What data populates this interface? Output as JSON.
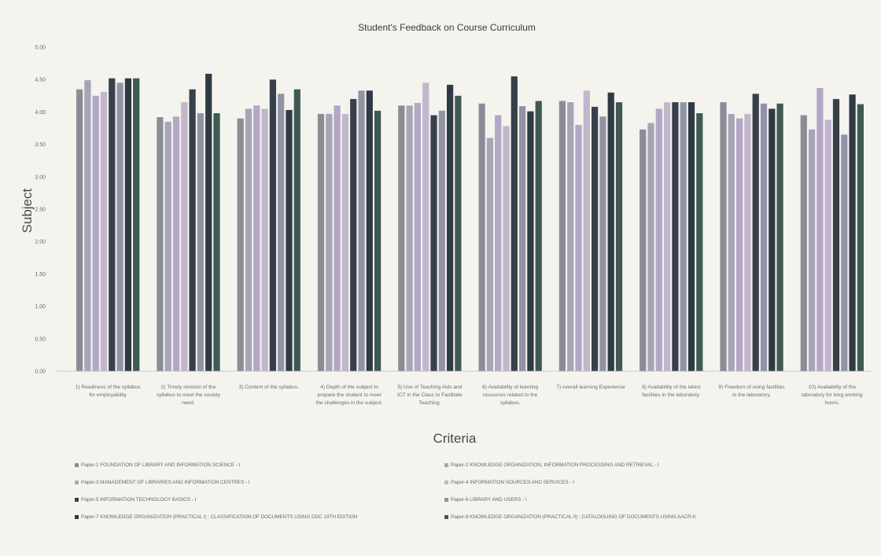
{
  "chart_data": {
    "type": "bar",
    "title": "Student's Feedback on Course Curriculum",
    "xlabel": "Criteria",
    "ylabel": "Subject",
    "ylim": [
      0,
      5
    ],
    "yticks": [
      "0.00",
      "0.50",
      "1.00",
      "1.50",
      "2.00",
      "2.50",
      "3.00",
      "3.50",
      "4.00",
      "4.50",
      "5.00"
    ],
    "grid": false,
    "legend_position": "bottom",
    "categories": [
      "1) Readiness of the syllabus for employability",
      "2) Timely revision of the syllabus to meet the society need.",
      "3) Content of the syllabus.",
      "4) Depth of the subject to prepare the student to meet the challenges in the subject.",
      "5) Use of Teaching Aids and ICT in the Class to Facilitate Teaching.",
      "6) Availability of learning resources related to the syllabus.",
      "7) overall learning Experience",
      "8) Availability of the latest facilities in the laboratory.",
      "9) Freedom of using facilities in the laboratory.",
      "10) Availability of the laboratory for long working hours."
    ],
    "series": [
      {
        "name": "Paper-1 FOUNDATION OF LIBRARY AND INFORMATION SCIENCE - I",
        "color": "#8c8c96",
        "values": [
          4.35,
          3.92,
          3.9,
          3.97,
          4.1,
          4.13,
          4.17,
          3.73,
          4.15,
          3.95
        ]
      },
      {
        "name": "Paper-2 KNOWLEDGE ORGANIZATION, INFORMATION PROCESSING AND RETRIEVAL - I",
        "color": "#a8a4b8",
        "values": [
          4.49,
          3.85,
          4.05,
          3.97,
          4.1,
          3.6,
          4.15,
          3.83,
          3.97,
          3.73
        ]
      },
      {
        "name": "Paper-3 MANAGEMENT OF LIBRARIES AND INFORMATION CENTRES - I",
        "color": "#b4a6c6",
        "values": [
          4.25,
          3.93,
          4.1,
          4.1,
          4.14,
          3.95,
          3.8,
          4.05,
          3.9,
          4.37
        ]
      },
      {
        "name": "Paper-4 INFORMATION SOURCES AND SERVICES - I",
        "color": "#c2b6cc",
        "values": [
          4.31,
          4.15,
          4.05,
          3.97,
          4.45,
          3.78,
          4.33,
          4.15,
          3.97,
          3.88
        ]
      },
      {
        "name": "Paper-5 INFORMATION TECHNOLOGY BASICS - I",
        "color": "#37404a",
        "values": [
          4.52,
          4.35,
          4.5,
          4.2,
          3.95,
          4.55,
          4.08,
          4.15,
          4.28,
          4.2
        ]
      },
      {
        "name": "Paper-6 LIBRARY AND USERS - I",
        "color": "#9094a6",
        "values": [
          4.45,
          3.98,
          4.28,
          4.33,
          4.02,
          4.09,
          3.93,
          4.15,
          4.13,
          3.65
        ]
      },
      {
        "name": "Paper-7 KNOWLEDGE ORGANIZATION (PRACTICAL I) : CLASSIFICATION OF DOCUMENTS USING DDC 19TH EDITION",
        "color": "#2e3a44",
        "values": [
          4.52,
          4.59,
          4.03,
          4.33,
          4.42,
          4.01,
          4.3,
          4.15,
          4.05,
          4.27
        ]
      },
      {
        "name": "Paper-8 KNOWLEDGE ORGANIZATION (PRACTICAL II) : CATALOGUING OF DOCUMENTS USING AACR-II",
        "color": "#3e5a52",
        "values": [
          4.52,
          3.98,
          4.35,
          4.02,
          4.25,
          4.17,
          4.15,
          3.98,
          4.13,
          4.12
        ]
      }
    ]
  },
  "legend_labels": [
    "Paper-1 FOUNDATION OF LIBRARY AND INFORMATION SCIENCE - I",
    "Paper-2 KNOWLEDGE ORGANIZATION, INFORMATION PROCESSING AND RETRIEVAL - I",
    "Paper-3 MANAGEMENT OF LIBRARIES AND INFORMATION CENTRES - I",
    "Paper-4 INFORMATION SOURCES AND SERVICES - I",
    "Paper-5 INFORMATION TECHNOLOGY BASICS - I",
    "Paper-6 LIBRARY AND USERS - I",
    "Paper-7 KNOWLEDGE ORGANIZATION (PRACTICAL I) : CLASSIFICATION OF DOCUMENTS USING DDC 19TH EDITION",
    "Paper-8 KNOWLEDGE ORGANIZATION (PRACTICAL II) : CATALOGUING OF DOCUMENTS USING AACR-II"
  ]
}
